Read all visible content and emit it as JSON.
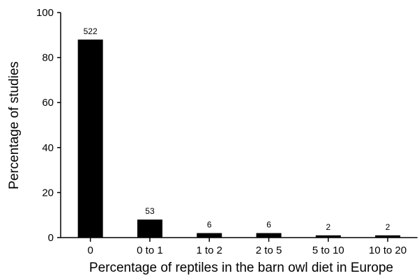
{
  "chart_data": {
    "type": "bar",
    "title": "",
    "xlabel": "Percentage of reptiles in the barn owl diet in Europe",
    "ylabel": "Percentage of studies",
    "categories": [
      "0",
      "0 to 1",
      "1 to 2",
      "2 to 5",
      "5 to 10",
      "10 to 20"
    ],
    "values": [
      88.0,
      8.0,
      2.0,
      2.0,
      1.0,
      1.0
    ],
    "data_labels": [
      "522",
      "53",
      "6",
      "6",
      "2",
      "2"
    ],
    "yticks": [
      "0",
      "20",
      "40",
      "60",
      "80",
      "100"
    ],
    "ylim": [
      0,
      100
    ],
    "grid": false,
    "bar_color": "#000000"
  }
}
